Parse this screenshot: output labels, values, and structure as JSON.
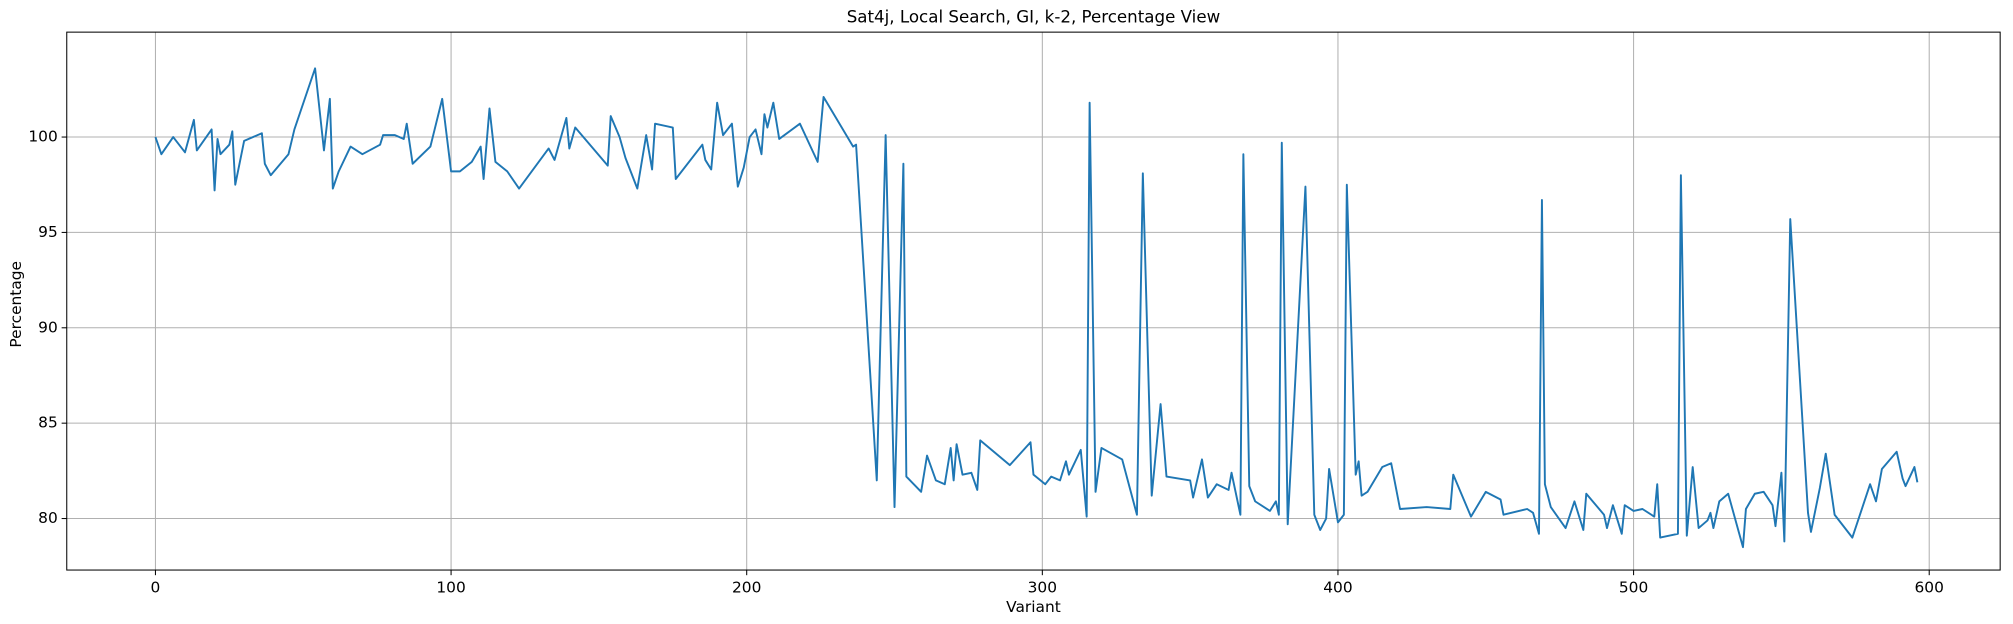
{
  "chart_data": {
    "type": "line",
    "title": "Sat4j, Local Search, GI, k-2, Percentage View",
    "xlabel": "Variant",
    "ylabel": "Percentage",
    "color": "#1f77b4",
    "grid": true,
    "xlim": [
      -30,
      624
    ],
    "ylim": [
      77.3,
      105.5
    ],
    "xticks": [
      0,
      100,
      200,
      300,
      400,
      500,
      600
    ],
    "yticks": [
      80,
      85,
      90,
      95,
      100
    ],
    "x": [
      0,
      2,
      6,
      10,
      13,
      14,
      19,
      20,
      21,
      22,
      25,
      26,
      27,
      30,
      36,
      37,
      39,
      45,
      47,
      54,
      57,
      59,
      60,
      62,
      66,
      70,
      76,
      77,
      81,
      84,
      85,
      87,
      93,
      97,
      100,
      103,
      107,
      110,
      111,
      113,
      115,
      119,
      123,
      133,
      135,
      139,
      140,
      142,
      153,
      154,
      157,
      159,
      163,
      166,
      168,
      169,
      175,
      176,
      185,
      186,
      188,
      190,
      192,
      195,
      197,
      199,
      201,
      203,
      205,
      206,
      207,
      209,
      211,
      218,
      224,
      226,
      236,
      237,
      244,
      247,
      250,
      253,
      254,
      259,
      261,
      264,
      267,
      269,
      270,
      271,
      273,
      276,
      278,
      279,
      289,
      296,
      297,
      301,
      303,
      306,
      308,
      309,
      313,
      315,
      316,
      318,
      320,
      327,
      332,
      334,
      337,
      340,
      342,
      350,
      351,
      354,
      356,
      359,
      363,
      364,
      367,
      368,
      370,
      372,
      377,
      379,
      380,
      381,
      383,
      389,
      392,
      394,
      396,
      397,
      400,
      402,
      403,
      406,
      407,
      408,
      410,
      415,
      418,
      421,
      430,
      438,
      439,
      445,
      450,
      455,
      456,
      464,
      466,
      468,
      469,
      470,
      472,
      477,
      480,
      483,
      484,
      490,
      491,
      493,
      496,
      497,
      500,
      503,
      507,
      508,
      509,
      515,
      516,
      518,
      520,
      522,
      525,
      526,
      527,
      529,
      532,
      537,
      538,
      541,
      544,
      547,
      548,
      550,
      551,
      553,
      559,
      560,
      563,
      565,
      568,
      574,
      580,
      582,
      584,
      589,
      591,
      592,
      595,
      596
    ],
    "values": [
      100,
      99.1,
      100,
      99.2,
      100.9,
      99.3,
      100.4,
      97.2,
      99.9,
      99.1,
      99.6,
      100.3,
      97.5,
      99.8,
      100.2,
      98.6,
      98.0,
      99.1,
      100.4,
      103.6,
      99.3,
      102.0,
      97.3,
      98.2,
      99.5,
      99.1,
      99.6,
      100.1,
      100.1,
      99.9,
      100.7,
      98.6,
      99.5,
      102.0,
      98.2,
      98.2,
      98.7,
      99.5,
      97.8,
      101.5,
      98.7,
      98.2,
      97.3,
      99.4,
      98.8,
      101.0,
      99.4,
      100.5,
      98.5,
      101.1,
      100.0,
      98.9,
      97.3,
      100.1,
      98.3,
      100.7,
      100.5,
      97.8,
      99.6,
      98.8,
      98.3,
      101.8,
      100.1,
      100.7,
      97.4,
      98.4,
      100.0,
      100.4,
      99.1,
      101.2,
      100.5,
      101.8,
      99.9,
      100.7,
      98.7,
      102.1,
      99.5,
      99.6,
      82.0,
      100.1,
      80.6,
      98.6,
      82.2,
      81.4,
      83.3,
      82.0,
      81.8,
      83.7,
      82.0,
      83.9,
      82.3,
      82.4,
      81.5,
      84.1,
      82.8,
      84.0,
      82.3,
      81.8,
      82.2,
      82.0,
      83.0,
      82.3,
      83.6,
      80.1,
      101.8,
      81.4,
      83.7,
      83.1,
      80.2,
      98.1,
      81.2,
      86.0,
      82.2,
      82.0,
      81.1,
      83.1,
      81.1,
      81.8,
      81.5,
      82.4,
      80.2,
      99.1,
      81.7,
      80.9,
      80.4,
      80.9,
      80.2,
      99.7,
      79.7,
      97.4,
      80.2,
      79.4,
      80.0,
      82.6,
      79.8,
      80.2,
      97.5,
      82.3,
      83.0,
      81.2,
      81.4,
      82.7,
      82.9,
      80.5,
      80.6,
      80.5,
      82.3,
      80.1,
      81.4,
      81.0,
      80.2,
      80.5,
      80.3,
      79.2,
      96.7,
      81.8,
      80.6,
      79.5,
      80.9,
      79.4,
      81.3,
      80.2,
      79.5,
      80.7,
      79.2,
      80.7,
      80.4,
      80.5,
      80.1,
      81.8,
      79.0,
      79.2,
      98.0,
      79.1,
      82.7,
      79.5,
      79.9,
      80.3,
      79.5,
      80.9,
      81.3,
      78.5,
      80.5,
      81.3,
      81.4,
      80.7,
      79.6,
      82.4,
      78.8,
      95.7,
      80.3,
      79.3,
      81.6,
      83.4,
      80.2,
      79.0,
      81.8,
      80.9,
      82.6,
      83.5,
      82.1,
      81.7,
      82.7,
      81.9
    ]
  }
}
